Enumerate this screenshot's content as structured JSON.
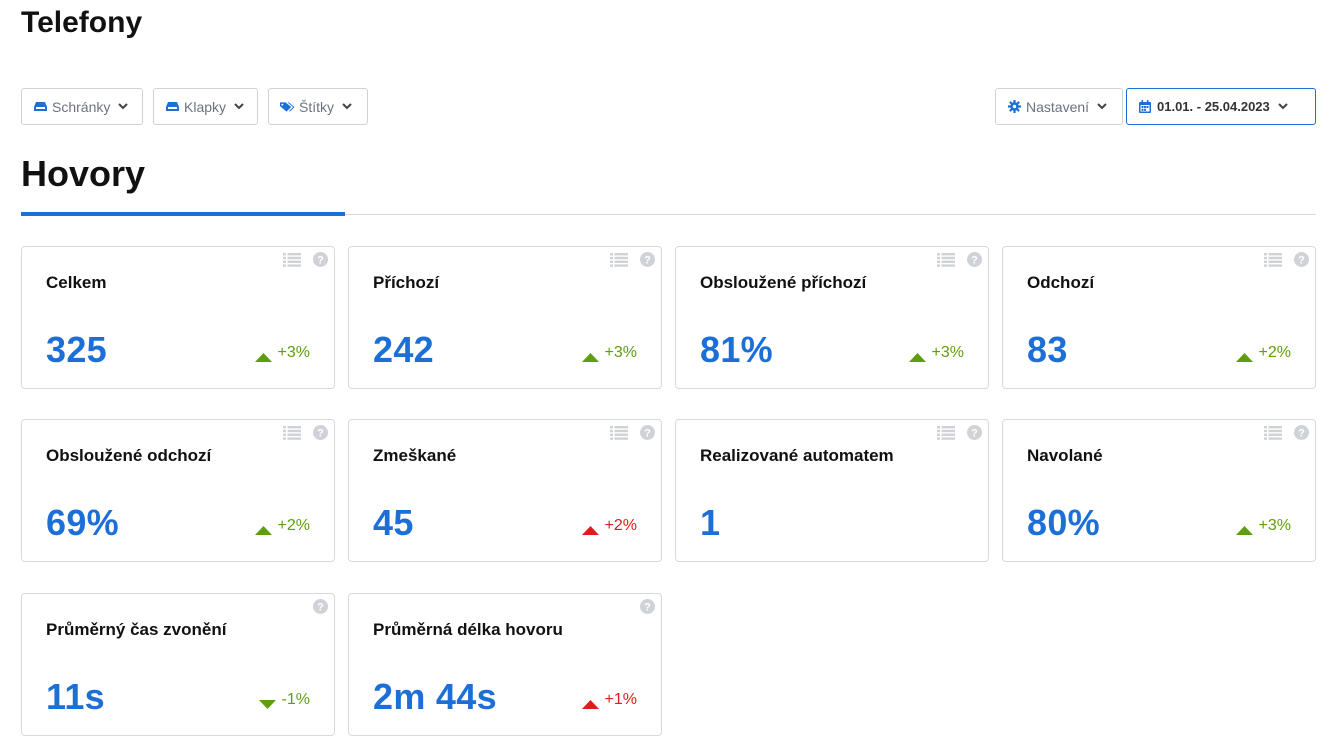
{
  "page": {
    "title": "Telefony"
  },
  "filters": {
    "schranky": {
      "label": "Schránky",
      "icon": "inbox-icon"
    },
    "klapky": {
      "label": "Klapky",
      "icon": "inbox-icon"
    },
    "stitky": {
      "label": "Štítky",
      "icon": "tags-icon"
    },
    "nastaveni": {
      "label": "Nastavení",
      "icon": "gear-icon"
    },
    "date_range": {
      "label": "01.01. - 25.04.2023",
      "icon": "calendar-icon"
    }
  },
  "section": {
    "title": "Hovory"
  },
  "colors": {
    "accent": "#1d6fd8",
    "positive": "#5f9e0a",
    "negative": "#e01b1b"
  },
  "cards": [
    {
      "label": "Celkem",
      "value": "325",
      "trend": "+3%",
      "trend_direction": "up",
      "trend_color": "green",
      "has_list": true
    },
    {
      "label": "Příchozí",
      "value": "242",
      "trend": "+3%",
      "trend_direction": "up",
      "trend_color": "green",
      "has_list": true
    },
    {
      "label": "Obsloužené příchozí",
      "value": "81%",
      "trend": "+3%",
      "trend_direction": "up",
      "trend_color": "green",
      "has_list": true
    },
    {
      "label": "Odchozí",
      "value": "83",
      "trend": "+2%",
      "trend_direction": "up",
      "trend_color": "green",
      "has_list": true
    },
    {
      "label": "Obsloužené odchozí",
      "value": "69%",
      "trend": "+2%",
      "trend_direction": "up",
      "trend_color": "green",
      "has_list": true
    },
    {
      "label": "Zmeškané",
      "value": "45",
      "trend": "+2%",
      "trend_direction": "up",
      "trend_color": "red",
      "has_list": true
    },
    {
      "label": "Realizované automatem",
      "value": "1",
      "trend": "",
      "trend_direction": "",
      "trend_color": "",
      "has_list": true
    },
    {
      "label": "Navolané",
      "value": "80%",
      "trend": "+3%",
      "trend_direction": "up",
      "trend_color": "green",
      "has_list": true
    },
    {
      "label": "Průměrný čas zvonění",
      "value": "11s",
      "trend": "-1%",
      "trend_direction": "down",
      "trend_color": "green",
      "has_list": false
    },
    {
      "label": "Průměrná délka hovoru",
      "value": "2m 44s",
      "trend": "+1%",
      "trend_direction": "up",
      "trend_color": "red",
      "has_list": false
    }
  ]
}
